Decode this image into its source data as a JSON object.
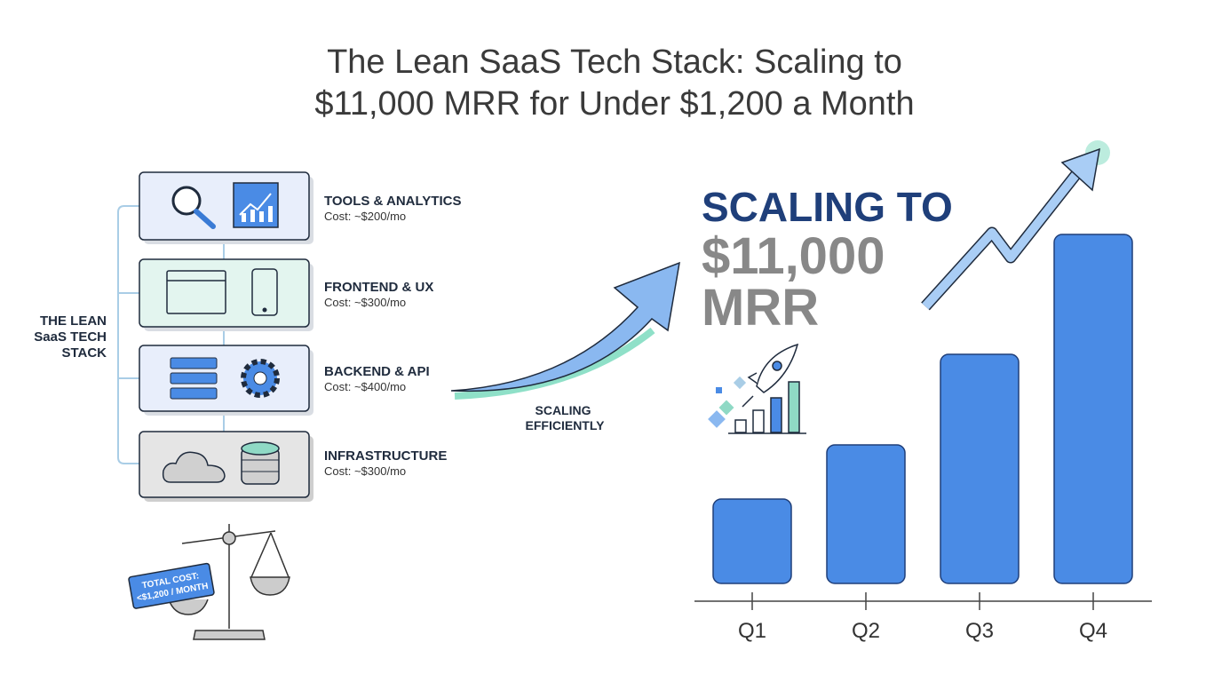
{
  "title": [
    "The Lean SaaS Tech Stack: Scaling to",
    "$11,000 MRR for Under $1,200 a Month"
  ],
  "stack": {
    "label": [
      "THE LEAN",
      "SaaS TECH",
      "STACK"
    ],
    "layers": [
      {
        "name": "TOOLS & ANALYTICS",
        "cost": "Cost: ~$200/mo"
      },
      {
        "name": "FRONTEND & UX",
        "cost": "Cost: ~$300/mo"
      },
      {
        "name": "BACKEND & API",
        "cost": "Cost: ~$400/mo"
      },
      {
        "name": "INFRASTRUCTURE",
        "cost": "Cost: ~$300/mo"
      }
    ]
  },
  "balance_tag": [
    "TOTAL COST:",
    "<$1,200 / MONTH"
  ],
  "arrow_label": [
    "SCALING",
    "EFFICIENTLY"
  ],
  "headline": [
    "SCALING TO",
    "$11,000",
    "MRR"
  ],
  "chart_data": {
    "type": "bar",
    "categories": [
      "Q1",
      "Q2",
      "Q3",
      "Q4"
    ],
    "values": [
      95,
      156,
      258,
      393
    ],
    "color": "#4a8be5"
  }
}
